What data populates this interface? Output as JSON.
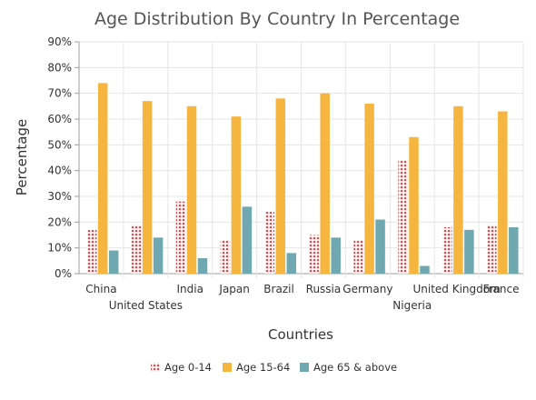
{
  "chart_data": {
    "type": "bar",
    "title": "Age Distribution By Country In Percentage",
    "xlabel": "Countries",
    "ylabel": "Percentage",
    "ylim": [
      0,
      90
    ],
    "yticks": [
      "0%",
      "10%",
      "20%",
      "30%",
      "40%",
      "50%",
      "60%",
      "70%",
      "80%",
      "90%"
    ],
    "grid": true,
    "legend_position": "bottom",
    "categories": [
      "China",
      "United States",
      "India",
      "Japan",
      "Brazil",
      "Russia",
      "Germany",
      "Nigeria",
      "United Kingdom",
      "France"
    ],
    "series": [
      {
        "name": "Age 0-14",
        "color": "#e94649",
        "pattern": "dots",
        "values": [
          17,
          19,
          28,
          13,
          24,
          15,
          13,
          44,
          18,
          19
        ]
      },
      {
        "name": "Age 15-64",
        "color": "#f6b53f",
        "pattern": "solid",
        "values": [
          74,
          67,
          65,
          61,
          68,
          70,
          66,
          53,
          65,
          63
        ]
      },
      {
        "name": "Age 65 & above",
        "color": "#6fa8b0",
        "pattern": "solid",
        "values": [
          9,
          14,
          6,
          26,
          8,
          14,
          21,
          3,
          17,
          18
        ]
      }
    ]
  }
}
